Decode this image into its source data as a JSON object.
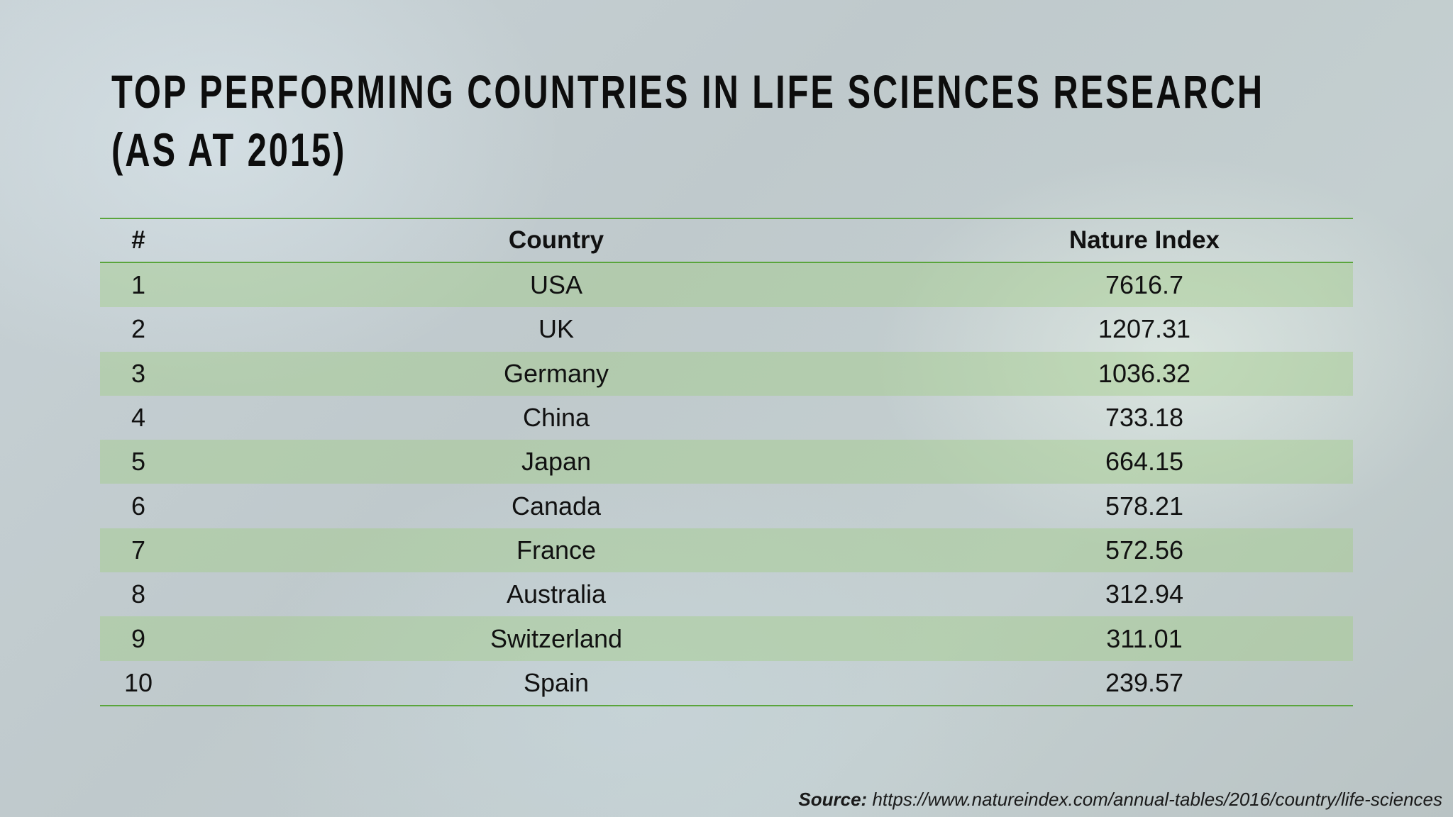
{
  "title_lines": [
    "TOP PERFORMING COUNTRIES IN LIFE SCIENCES RESEARCH",
    "(AS AT 2015)"
  ],
  "table": {
    "header": [
      "#",
      "Country",
      "Nature Index"
    ],
    "rows": [
      [
        1,
        "USA",
        7616.7
      ],
      [
        2,
        "UK",
        1207.31
      ],
      [
        3,
        "Germany",
        1036.32
      ],
      [
        4,
        "China",
        733.18
      ],
      [
        5,
        "Japan",
        664.15
      ],
      [
        6,
        "Canada",
        578.21
      ],
      [
        7,
        "France",
        572.56
      ],
      [
        8,
        "Australia",
        312.94
      ],
      [
        9,
        "Switzerland",
        311.01
      ],
      [
        10,
        "Spain",
        239.57
      ]
    ]
  },
  "source": {
    "label": "Source:",
    "url": "https://www.natureindex.com/annual-tables/2016/country/life-sciences"
  }
}
